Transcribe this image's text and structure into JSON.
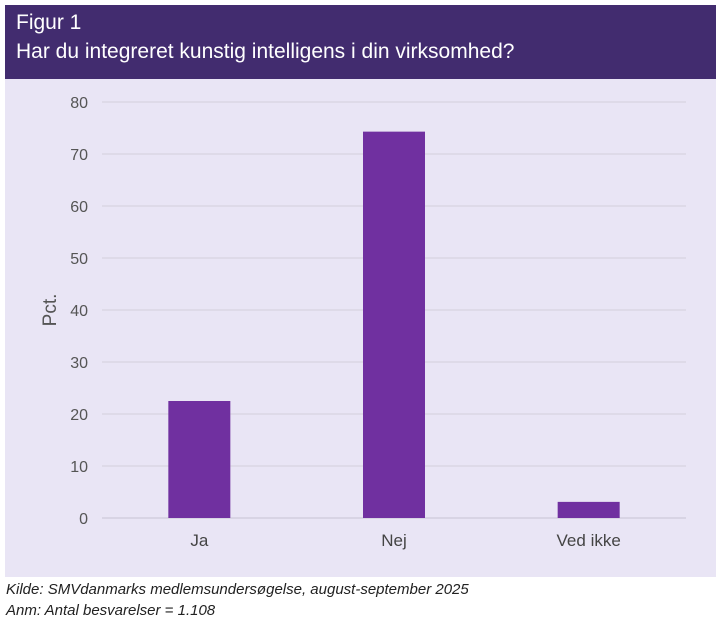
{
  "header": {
    "figure_label": "Figur 1",
    "title": "Har du integreret kunstig intelligens i din virksomhed?"
  },
  "footer": {
    "source": "Kilde: SMVdanmarks medlemsundersøgelse, august-september 2025",
    "note": "Anm: Antal besvarelser = 1.108"
  },
  "colors": {
    "header_bg": "#422c6f",
    "panel_bg": "#e9e5f5",
    "bar": "#7030a0",
    "grid": "#d4d0dc"
  },
  "chart_data": {
    "type": "bar",
    "title": "Har du integreret kunstig intelligens i din virksomhed?",
    "categories": [
      "Ja",
      "Nej",
      "Ved ikke"
    ],
    "values": [
      22.5,
      74.3,
      3.1
    ],
    "xlabel": "",
    "ylabel": "Pct.",
    "ylim": [
      0,
      80
    ],
    "yticks": [
      0,
      10,
      20,
      30,
      40,
      50,
      60,
      70,
      80
    ],
    "grid": true,
    "legend": "none"
  }
}
